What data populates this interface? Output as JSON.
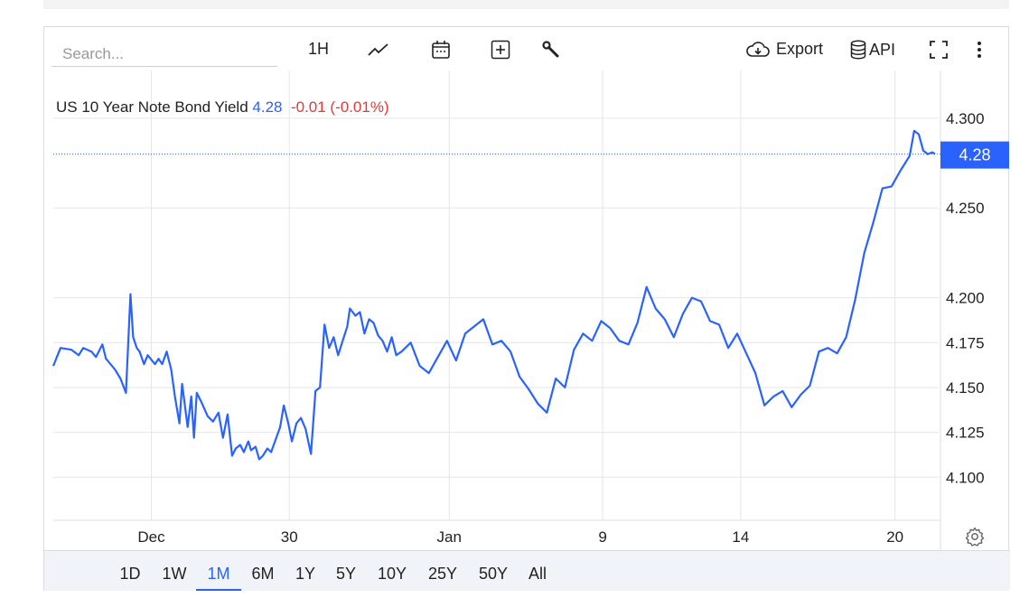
{
  "toolbar": {
    "search_placeholder": "Search...",
    "interval_label": "1H",
    "export_label": "Export",
    "api_label": "API"
  },
  "icons": [
    "line-chart-icon",
    "calendar-icon",
    "add-indicator-icon",
    "wrench-icon",
    "cloud-download-icon",
    "database-icon",
    "fullscreen-icon",
    "more-vertical-icon",
    "gear-icon"
  ],
  "header": {
    "name": "US 10 Year Note Bond Yield",
    "last": "4.28",
    "change": "-0.01 (-0.01%)"
  },
  "current_price_label": "4.28",
  "colors": {
    "line": "#2962ff",
    "price_tag_bg": "#2962ff",
    "negative": "#e53935",
    "grid": "#e6e6e6"
  },
  "range_buttons": [
    "1D",
    "1W",
    "1M",
    "6M",
    "1Y",
    "5Y",
    "10Y",
    "25Y",
    "50Y",
    "All"
  ],
  "active_range": "1M",
  "chart_data": {
    "type": "line",
    "title": "US 10 Year Note Bond Yield",
    "xlabel": "",
    "ylabel": "",
    "ylim": [
      4.076,
      4.3266
    ],
    "yticks": [
      4.1,
      4.125,
      4.15,
      4.175,
      4.2,
      4.25,
      4.3
    ],
    "ytick_labels": [
      "4.100",
      "4.125",
      "4.150",
      "4.175",
      "4.200",
      "4.250",
      "4.300"
    ],
    "xticks": [
      {
        "label": "Dec",
        "t": 0.1107
      },
      {
        "label": "30",
        "t": 0.2666
      },
      {
        "label": "Jan",
        "t": 0.4472
      },
      {
        "label": "9",
        "t": 0.6205
      },
      {
        "label": "14",
        "t": 0.7764
      },
      {
        "label": "20",
        "t": 0.9507
      }
    ],
    "current_value": 4.28,
    "grid": true,
    "series": [
      {
        "t": [
          0.0,
          0.0082,
          0.0205,
          0.0287,
          0.0338,
          0.0431,
          0.0482,
          0.0554,
          0.0595,
          0.0697,
          0.0758,
          0.079,
          0.082,
          0.0871,
          0.0902,
          0.0943,
          0.0974,
          0.1025,
          0.1066,
          0.1148,
          0.1189,
          0.123,
          0.1281,
          0.1332,
          0.1373,
          0.1424,
          0.1455,
          0.1517,
          0.1558,
          0.1589,
          0.162,
          0.1681,
          0.1743,
          0.1804,
          0.1865,
          0.1916,
          0.1968,
          0.2019,
          0.206,
          0.2111,
          0.2152,
          0.2203,
          0.2234,
          0.2285,
          0.2326,
          0.2367,
          0.2418,
          0.246,
          0.2511,
          0.2562,
          0.2603,
          0.2654,
          0.2695,
          0.2746,
          0.2797,
          0.2849,
          0.291,
          0.2961,
          0.3012,
          0.3063,
          0.3115,
          0.3166,
          0.3217,
          0.3268,
          0.332,
          0.335,
          0.3412,
          0.3463,
          0.3514,
          0.3566,
          0.3617,
          0.3668,
          0.3719,
          0.377,
          0.3822,
          0.3873,
          0.3934,
          0.4037,
          0.4139,
          0.4242,
          0.4344,
          0.4447,
          0.4549,
          0.4652,
          0.4754,
          0.4857,
          0.4959,
          0.5062,
          0.5164,
          0.5266,
          0.5369,
          0.5472,
          0.5574,
          0.5676,
          0.5779,
          0.5881,
          0.5984,
          0.6086,
          0.6189,
          0.6291,
          0.6393,
          0.6496,
          0.6598,
          0.6701,
          0.6803,
          0.6906,
          0.7008,
          0.7111,
          0.7213,
          0.7316,
          0.7418,
          0.752,
          0.7623,
          0.7725,
          0.7828,
          0.793,
          0.8033,
          0.8135,
          0.8238,
          0.834,
          0.8443,
          0.8545,
          0.8648,
          0.875,
          0.8853,
          0.8955,
          0.9057,
          0.916,
          0.9262,
          0.9365,
          0.9467,
          0.957,
          0.9672,
          0.9723,
          0.9775,
          0.9826,
          0.9877,
          0.9928,
          0.9959
        ],
        "values": [
          4.162,
          4.172,
          4.171,
          4.168,
          4.172,
          4.17,
          4.167,
          4.174,
          4.166,
          4.16,
          4.155,
          4.151,
          4.147,
          4.202,
          4.178,
          4.172,
          4.17,
          4.163,
          4.168,
          4.163,
          4.166,
          4.163,
          4.17,
          4.16,
          4.145,
          4.13,
          4.152,
          4.128,
          4.145,
          4.122,
          4.147,
          4.141,
          4.134,
          4.131,
          4.136,
          4.122,
          4.135,
          4.112,
          4.116,
          4.118,
          4.114,
          4.12,
          4.115,
          4.117,
          4.11,
          4.112,
          4.116,
          4.114,
          4.121,
          4.128,
          4.14,
          4.13,
          4.12,
          4.13,
          4.133,
          4.127,
          4.113,
          4.148,
          4.15,
          4.185,
          4.172,
          4.178,
          4.168,
          4.176,
          4.184,
          4.194,
          4.19,
          4.192,
          4.18,
          4.188,
          4.186,
          4.179,
          4.176,
          4.17,
          4.178,
          4.168,
          4.17,
          4.175,
          4.162,
          4.158,
          4.167,
          4.176,
          4.165,
          4.18,
          4.184,
          4.188,
          4.174,
          4.176,
          4.17,
          4.156,
          4.149,
          4.141,
          4.136,
          4.155,
          4.15,
          4.171,
          4.18,
          4.176,
          4.187,
          4.183,
          4.176,
          4.174,
          4.186,
          4.206,
          4.194,
          4.188,
          4.178,
          4.191,
          4.2,
          4.198,
          4.187,
          4.185,
          4.172,
          4.18,
          4.169,
          4.158,
          4.14,
          4.145,
          4.148,
          4.139,
          4.146,
          4.151,
          4.17,
          4.172,
          4.169,
          4.178,
          4.199,
          4.225,
          4.242,
          4.261,
          4.262,
          4.271,
          4.279,
          4.293,
          4.291,
          4.282,
          4.28,
          4.281,
          4.28
        ]
      }
    ]
  }
}
